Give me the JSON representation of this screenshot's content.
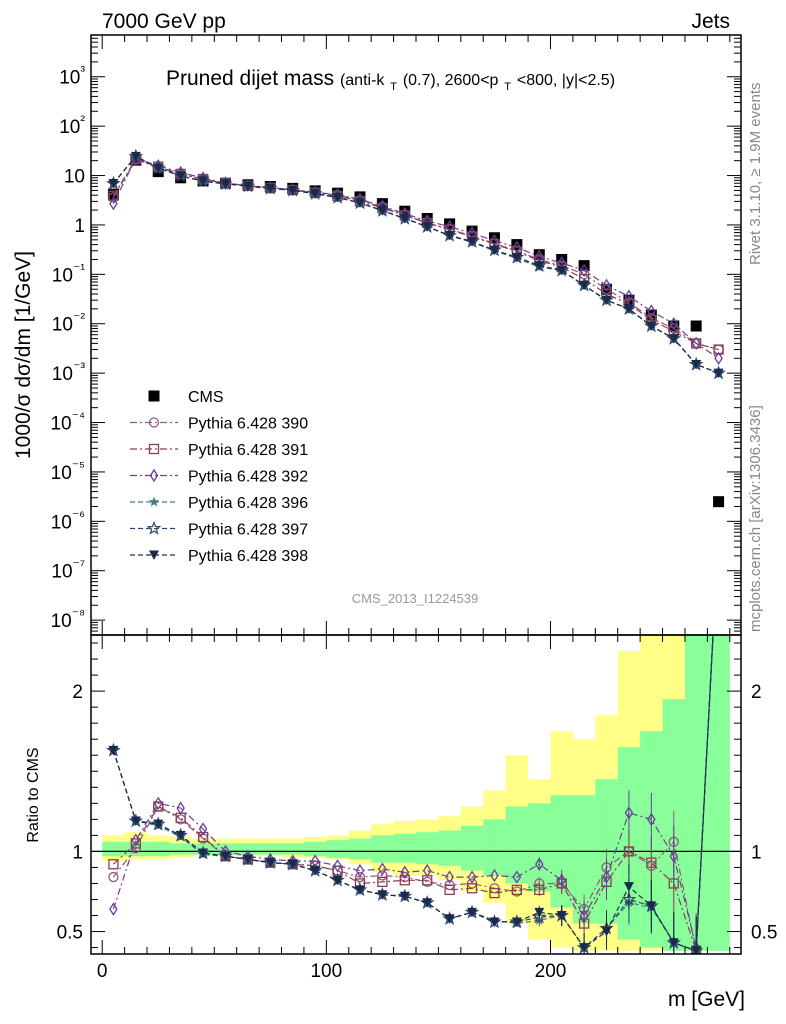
{
  "header": {
    "left": "7000 GeV pp",
    "right": "Jets"
  },
  "side_labels": {
    "rivet": "Rivet 3.1.10, ≥ 1.9M events",
    "mcplots": "mcplots.cern.ch [arXiv:1306.3436]"
  },
  "chart_data": [
    {
      "type": "scatter",
      "title": "Pruned dijet mass",
      "subtitle": "(anti-k",
      "subtitle_sub": "T",
      "subtitle_rest": "(0.7), 2600<p",
      "subtitle_sub2": "T",
      "subtitle_end": "<800, |y|<2.5)",
      "ylabel": "1000/σ dσ/dm [1/GeV]",
      "watermark": "CMS_2013_I1224539",
      "yscale": "log",
      "ylim": [
        5e-09,
        7000
      ],
      "xlim": [
        -5,
        285
      ],
      "ytick_labels": [
        "10⁻⁸",
        "10⁻⁷",
        "10⁻⁶",
        "10⁻⁵",
        "10⁻⁴",
        "10⁻³",
        "10⁻²",
        "10⁻¹",
        "1",
        "10",
        "10²",
        "10³"
      ],
      "ytick_values": [
        1e-08,
        1e-07,
        1e-06,
        1e-05,
        0.0001,
        0.001,
        0.01,
        0.1,
        1,
        10,
        100,
        1000
      ],
      "x": [
        5,
        15,
        25,
        35,
        45,
        55,
        65,
        75,
        85,
        95,
        105,
        115,
        125,
        135,
        145,
        155,
        165,
        175,
        185,
        195,
        205,
        215,
        225,
        235,
        245,
        255,
        265,
        275
      ],
      "series": [
        {
          "name": "CMS",
          "color": "#000000",
          "marker": "square-filled",
          "values": [
            4.2,
            20.5,
            12.0,
            9.0,
            7.8,
            7.0,
            6.5,
            6.0,
            5.5,
            4.9,
            4.4,
            3.7,
            2.7,
            1.9,
            1.35,
            1.05,
            0.75,
            0.55,
            0.4,
            0.25,
            0.2,
            0.15,
            0.05,
            0.03,
            0.015,
            0.009,
            0.009,
            2.5e-06
          ]
        },
        {
          "name": "Pythia 6.428 390",
          "color": "#8e5c7c",
          "marker": "circle-open",
          "values": [
            3.6,
            21.0,
            14.5,
            10.6,
            8.4,
            7.0,
            6.2,
            5.6,
            5.1,
            4.5,
            4.0,
            3.1,
            2.3,
            1.6,
            1.1,
            0.82,
            0.6,
            0.42,
            0.3,
            0.2,
            0.15,
            0.1,
            0.05,
            0.027,
            0.013,
            0.008,
            0.004,
            0.003
          ]
        },
        {
          "name": "Pythia 6.428 391",
          "color": "#8c3f4f",
          "marker": "square-open",
          "values": [
            3.9,
            21.5,
            15.2,
            10.8,
            8.5,
            7.0,
            6.2,
            5.6,
            5.1,
            4.5,
            3.9,
            3.0,
            2.2,
            1.55,
            1.1,
            0.8,
            0.58,
            0.41,
            0.29,
            0.19,
            0.14,
            0.08,
            0.04,
            0.025,
            0.012,
            0.007,
            0.004,
            0.003
          ]
        },
        {
          "name": "Pythia 6.428 392",
          "color": "#6a3f9c",
          "marker": "diamond-open",
          "values": [
            2.7,
            22.0,
            15.8,
            11.5,
            8.9,
            7.0,
            6.3,
            5.7,
            5.2,
            4.6,
            4.1,
            3.3,
            2.4,
            1.7,
            1.2,
            0.92,
            0.68,
            0.48,
            0.35,
            0.23,
            0.17,
            0.12,
            0.06,
            0.036,
            0.018,
            0.01,
            0.004,
            0.002
          ]
        },
        {
          "name": "Pythia 6.428 396",
          "color": "#4a7b86",
          "marker": "star-filled",
          "values": [
            6.9,
            24.5,
            14.0,
            9.8,
            7.6,
            6.8,
            6.1,
            5.5,
            5.0,
            4.3,
            3.6,
            2.8,
            1.95,
            1.35,
            0.92,
            0.6,
            0.45,
            0.3,
            0.21,
            0.14,
            0.12,
            0.06,
            0.03,
            0.02,
            0.009,
            0.005,
            0.0015,
            0.001
          ]
        },
        {
          "name": "Pythia 6.428 397",
          "color": "#2e4a6e",
          "marker": "star-open",
          "values": [
            6.9,
            24.5,
            14.2,
            9.9,
            7.7,
            6.8,
            6.1,
            5.5,
            5.0,
            4.3,
            3.6,
            2.8,
            1.95,
            1.35,
            0.92,
            0.61,
            0.46,
            0.31,
            0.22,
            0.15,
            0.12,
            0.06,
            0.03,
            0.02,
            0.009,
            0.005,
            0.0015,
            0.001
          ]
        },
        {
          "name": "Pythia 6.428 398",
          "color": "#1a2a4a",
          "marker": "triangle-down-filled",
          "values": [
            6.9,
            24.5,
            14.2,
            9.9,
            7.7,
            6.8,
            6.1,
            5.5,
            5.0,
            4.3,
            3.6,
            2.8,
            1.95,
            1.35,
            0.92,
            0.61,
            0.46,
            0.31,
            0.22,
            0.15,
            0.12,
            0.06,
            0.03,
            0.02,
            0.009,
            0.005,
            0.0015,
            0.001
          ]
        }
      ],
      "legend_placement": "middle-left"
    },
    {
      "type": "line",
      "ylabel": "Ratio to CMS",
      "xlabel": "m [GeV]",
      "ylim": [
        0.36,
        2.35
      ],
      "xlim": [
        -5,
        285
      ],
      "xtick_labels": [
        "0",
        "100",
        "200"
      ],
      "xtick_values": [
        0,
        100,
        200
      ],
      "ytick_labels": [
        "0.5",
        "1",
        "2"
      ],
      "ytick_values": [
        0.5,
        1,
        2
      ],
      "band_edges": [
        0,
        10,
        20,
        30,
        40,
        50,
        60,
        70,
        80,
        90,
        100,
        110,
        120,
        130,
        140,
        150,
        160,
        170,
        180,
        190,
        200,
        210,
        220,
        230,
        240,
        250,
        260,
        270,
        280
      ],
      "yellow_band": {
        "color": "#ffff88",
        "low": [
          0.94,
          0.95,
          0.95,
          0.96,
          0.97,
          0.97,
          0.97,
          0.97,
          0.96,
          0.96,
          0.95,
          0.92,
          0.87,
          0.85,
          0.85,
          0.82,
          0.75,
          0.68,
          0.55,
          0.45,
          0.4,
          0.38,
          0.38,
          0.38,
          0.38,
          0.38,
          0.38,
          0.38
        ],
        "high": [
          1.1,
          1.12,
          1.1,
          1.09,
          1.08,
          1.08,
          1.08,
          1.08,
          1.08,
          1.09,
          1.1,
          1.13,
          1.17,
          1.19,
          1.2,
          1.22,
          1.28,
          1.38,
          1.6,
          1.45,
          1.75,
          1.7,
          1.85,
          2.25,
          2.35,
          2.35,
          2.35,
          2.35
        ]
      },
      "green_band": {
        "color": "#88ff99",
        "low": [
          0.97,
          0.97,
          0.97,
          0.98,
          0.98,
          0.98,
          0.98,
          0.98,
          0.98,
          0.97,
          0.96,
          0.95,
          0.93,
          0.93,
          0.92,
          0.91,
          0.88,
          0.85,
          0.8,
          0.75,
          0.65,
          0.55,
          0.55,
          0.45,
          0.4,
          0.38,
          0.38,
          0.38
        ],
        "high": [
          1.06,
          1.06,
          1.06,
          1.05,
          1.05,
          1.05,
          1.05,
          1.05,
          1.05,
          1.06,
          1.07,
          1.08,
          1.1,
          1.11,
          1.12,
          1.13,
          1.16,
          1.2,
          1.28,
          1.3,
          1.35,
          1.35,
          1.45,
          1.65,
          1.75,
          1.95,
          2.35,
          2.35
        ]
      },
      "unity_line": 1,
      "x": [
        5,
        15,
        25,
        35,
        45,
        55,
        65,
        75,
        85,
        95,
        105,
        115,
        125,
        135,
        145,
        155,
        165,
        175,
        185,
        195,
        205,
        215,
        225,
        235,
        245,
        255,
        265,
        275
      ],
      "series": [
        {
          "name": "Pythia 6.428 390",
          "color": "#8e5c7c",
          "marker": "circle-open",
          "values": [
            0.84,
            1.02,
            1.28,
            1.2,
            1.08,
            0.97,
            0.95,
            0.93,
            0.92,
            0.91,
            0.88,
            0.84,
            0.85,
            0.84,
            0.81,
            0.79,
            0.8,
            0.77,
            0.75,
            0.8,
            0.8,
            0.64,
            0.9,
            1.0,
            0.91,
            1.06,
            0.38,
            3.0
          ]
        },
        {
          "name": "Pythia 6.428 391",
          "color": "#8c3f4f",
          "marker": "square-open",
          "values": [
            0.92,
            1.05,
            1.28,
            1.21,
            1.09,
            0.97,
            0.95,
            0.93,
            0.92,
            0.91,
            0.88,
            0.8,
            0.81,
            0.82,
            0.82,
            0.76,
            0.77,
            0.74,
            0.76,
            0.76,
            0.8,
            0.55,
            0.81,
            1.0,
            0.93,
            0.8,
            0.38,
            3.0
          ]
        },
        {
          "name": "Pythia 6.428 392",
          "color": "#6a3f9c",
          "marker": "diamond-open",
          "values": [
            0.64,
            1.07,
            1.3,
            1.27,
            1.14,
            1.0,
            0.97,
            0.95,
            0.94,
            0.94,
            0.91,
            0.88,
            0.89,
            0.87,
            0.88,
            0.84,
            0.84,
            0.85,
            0.84,
            0.92,
            0.82,
            0.6,
            0.84,
            1.24,
            1.2,
            0.97,
            0.4,
            3.0
          ]
        },
        {
          "name": "Pythia 6.428 396",
          "color": "#4a7b86",
          "marker": "star-filled",
          "values": [
            1.63,
            1.19,
            1.16,
            1.09,
            0.98,
            0.97,
            0.95,
            0.93,
            0.92,
            0.88,
            0.82,
            0.76,
            0.73,
            0.72,
            0.68,
            0.58,
            0.62,
            0.57,
            0.55,
            0.57,
            0.6,
            0.4,
            0.52,
            0.68,
            0.65,
            0.43,
            0.38,
            3.0
          ]
        },
        {
          "name": "Pythia 6.428 397",
          "color": "#2e4a6e",
          "marker": "star-open",
          "values": [
            1.63,
            1.19,
            1.17,
            1.1,
            0.99,
            0.97,
            0.95,
            0.93,
            0.92,
            0.88,
            0.82,
            0.76,
            0.73,
            0.72,
            0.68,
            0.58,
            0.62,
            0.56,
            0.56,
            0.59,
            0.6,
            0.4,
            0.52,
            0.7,
            0.66,
            0.43,
            0.38,
            3.0
          ]
        },
        {
          "name": "Pythia 6.428 398",
          "color": "#1a2a4a",
          "marker": "triangle-down-filled",
          "values": [
            1.63,
            1.19,
            1.17,
            1.1,
            0.99,
            0.97,
            0.95,
            0.93,
            0.92,
            0.88,
            0.82,
            0.76,
            0.73,
            0.72,
            0.68,
            0.58,
            0.62,
            0.56,
            0.56,
            0.62,
            0.6,
            0.4,
            0.5,
            0.78,
            0.66,
            0.43,
            0.38,
            3.0
          ]
        }
      ]
    }
  ]
}
